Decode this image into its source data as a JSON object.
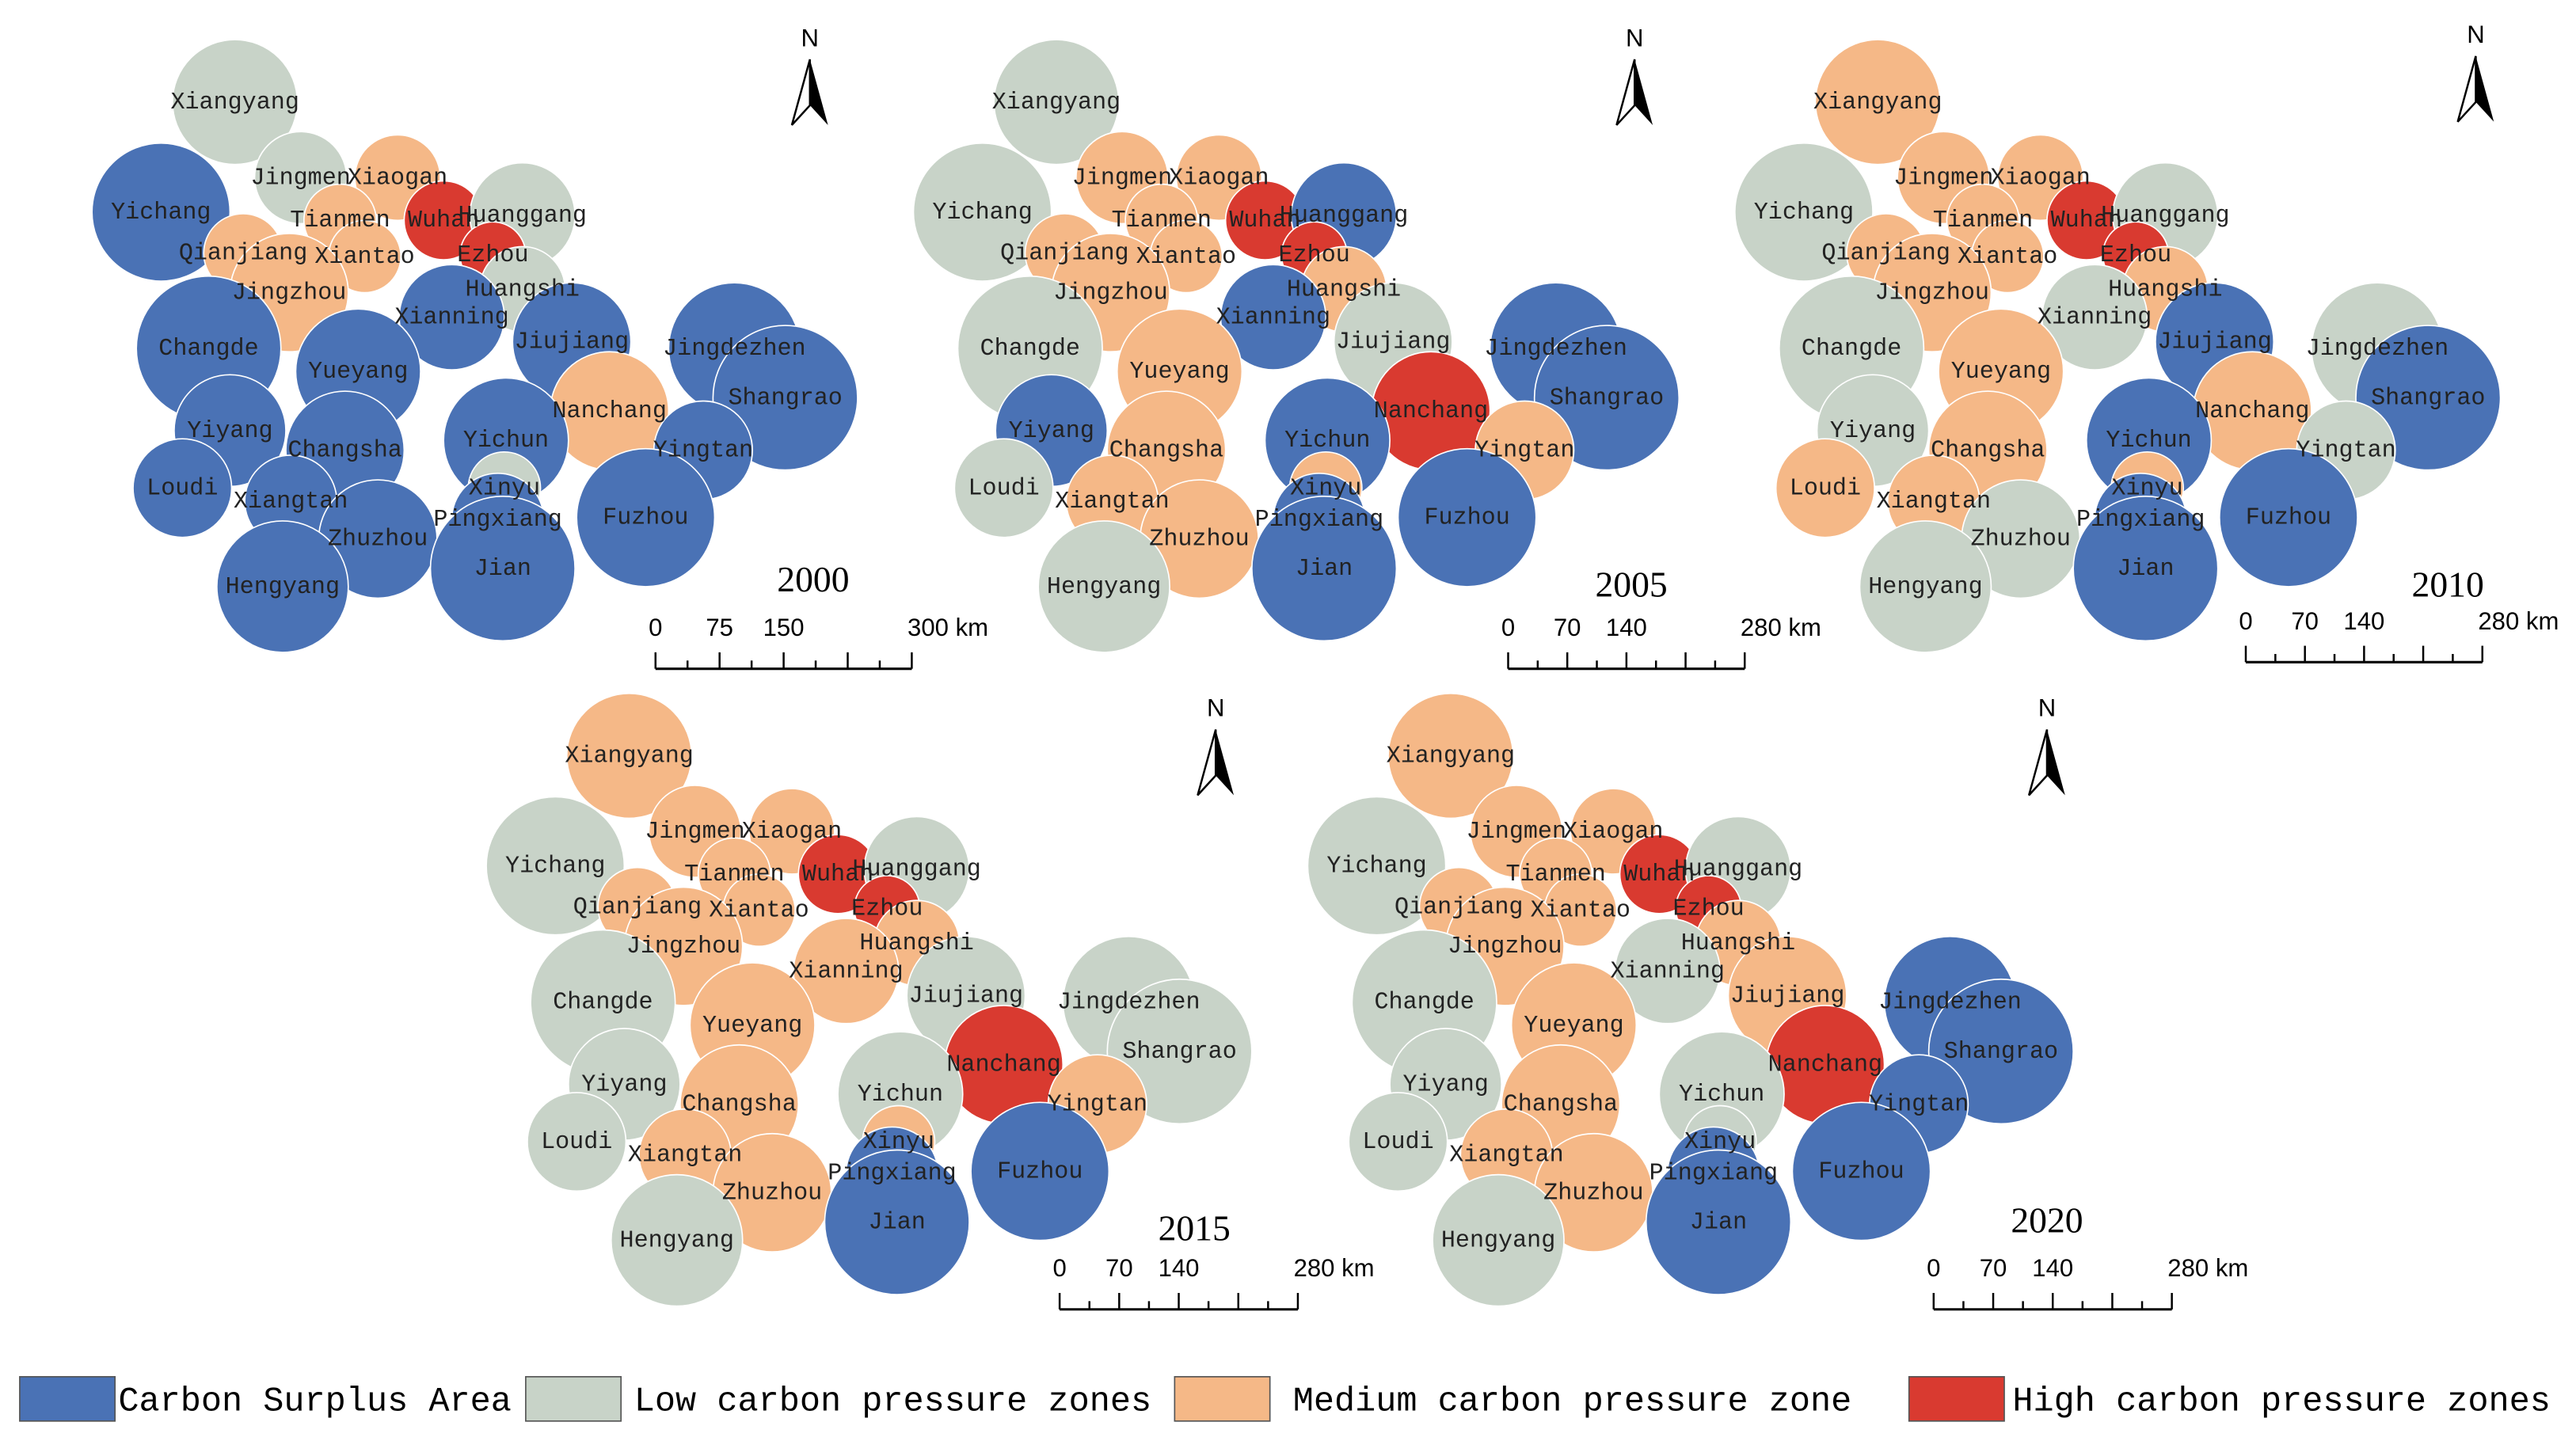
{
  "cities": [
    "Xiangyang",
    "Jingmen",
    "Xiaogan",
    "Yichang",
    "Tianmen",
    "Wuhan",
    "Huanggang",
    "Qianjiang",
    "Xiantao",
    "Ezhou",
    "Jingzhou",
    "Huangshi",
    "Xianning",
    "Changde",
    "Jiujiang",
    "Jingdezhen",
    "Yueyang",
    "Nanchang",
    "Shangrao",
    "Yiyang",
    "Changsha",
    "Yichun",
    "Yingtan",
    "Loudi",
    "Xiangtan",
    "Xinyu",
    "Pingxiang",
    "Fuzhou",
    "Zhuzhou",
    "Jian",
    "Hengyang"
  ],
  "maps": [
    {
      "year": "2000",
      "north": "N",
      "scale_labels": [
        "0",
        "75",
        "150",
        "300 km"
      ],
      "zones": [
        1,
        1,
        2,
        0,
        2,
        3,
        1,
        2,
        2,
        3,
        2,
        1,
        0,
        0,
        0,
        0,
        0,
        2,
        0,
        0,
        0,
        0,
        0,
        0,
        0,
        1,
        0,
        0,
        0,
        0,
        0
      ]
    },
    {
      "year": "2005",
      "north": "N",
      "scale_labels": [
        "0",
        "70",
        "140",
        "280 km"
      ],
      "zones": [
        1,
        2,
        2,
        1,
        2,
        3,
        0,
        2,
        2,
        3,
        2,
        2,
        0,
        1,
        1,
        0,
        2,
        3,
        0,
        0,
        2,
        0,
        2,
        1,
        2,
        2,
        0,
        0,
        2,
        0,
        1
      ]
    },
    {
      "year": "2010",
      "north": "N",
      "scale_labels": [
        "0",
        "70",
        "140",
        "280 km"
      ],
      "zones": [
        2,
        2,
        2,
        1,
        2,
        3,
        1,
        2,
        2,
        3,
        2,
        2,
        1,
        1,
        0,
        1,
        2,
        2,
        0,
        1,
        2,
        0,
        1,
        2,
        2,
        2,
        0,
        0,
        1,
        0,
        1
      ]
    },
    {
      "year": "2015",
      "north": "N",
      "scale_labels": [
        "0",
        "70",
        "140",
        "280 km"
      ],
      "zones": [
        2,
        2,
        2,
        1,
        2,
        3,
        1,
        2,
        2,
        3,
        2,
        2,
        2,
        1,
        1,
        1,
        2,
        3,
        1,
        1,
        2,
        1,
        2,
        1,
        2,
        2,
        0,
        0,
        2,
        0,
        1
      ]
    },
    {
      "year": "2020",
      "north": "N",
      "scale_labels": [
        "0",
        "70",
        "140",
        "280 km"
      ],
      "zones": [
        2,
        2,
        2,
        1,
        2,
        3,
        1,
        2,
        2,
        3,
        2,
        2,
        1,
        1,
        2,
        0,
        2,
        3,
        0,
        1,
        2,
        1,
        0,
        1,
        2,
        1,
        0,
        0,
        2,
        0,
        1
      ]
    }
  ],
  "legend": [
    {
      "label": "Carbon Surplus Area",
      "color": "#4a72b5"
    },
    {
      "label": "Low carbon pressure zones",
      "color": "#c8d3c8"
    },
    {
      "label": "Medium carbon pressure zone",
      "color": "#f5b887"
    },
    {
      "label": "High carbon pressure zones",
      "color": "#d93a30"
    }
  ]
}
